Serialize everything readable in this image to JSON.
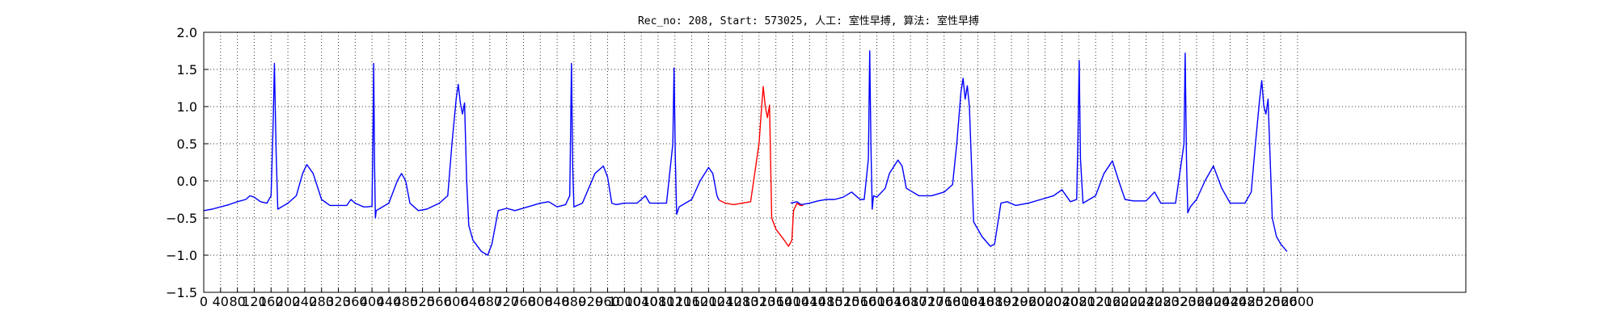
{
  "chart_data": {
    "type": "line",
    "title": "Rec_no: 208, Start: 573025, 人工: 室性早搏, 算法: 室性早搏",
    "xlabel": "",
    "ylabel": "",
    "xlim": [
      0,
      3000
    ],
    "ylim": [
      -1.5,
      2.0
    ],
    "yticks": [
      -1.5,
      -1.0,
      -0.5,
      0.0,
      0.5,
      1.0,
      1.5,
      2.0
    ],
    "ytick_labels": [
      "−1.5",
      "−1.0",
      "−0.5",
      "0.0",
      "0.5",
      "1.0",
      "1.5",
      "2.0"
    ],
    "xticks": [
      0,
      40,
      80,
      120,
      160,
      200,
      240,
      280,
      320,
      360,
      400,
      440,
      480,
      520,
      560,
      600,
      640,
      680,
      720,
      760,
      800,
      840,
      880,
      920,
      960,
      1000,
      1040,
      1080,
      1120,
      1160,
      1200,
      1240,
      1280,
      1320,
      1360,
      1400,
      1440,
      1480,
      1520,
      1560,
      1600,
      1640,
      1680,
      1720,
      1760,
      1800,
      1840,
      1880,
      1920,
      1960,
      2000,
      2040,
      2080,
      2120,
      2160,
      2200,
      2240,
      2280,
      2320,
      2360,
      2400,
      2440,
      2480,
      2520,
      2560,
      2600
    ],
    "grid": true,
    "series": [
      {
        "color": "#0000ff",
        "segments": [
          {
            "x": [
              0,
              20,
              40,
              60,
              80,
              100,
              110,
              120,
              135,
              150,
              160,
              165,
              168,
              172,
              176,
              200,
              220,
              235,
              245,
              260,
              280,
              300,
              320,
              340,
              350,
              360,
              380,
              390,
              400,
              402,
              404,
              406,
              408,
              410,
              416,
              440,
              460,
              470,
              480,
              490,
              510,
              530,
              560,
              580,
              590,
              600,
              605,
              610,
              615,
              620,
              625,
              630,
              640,
              660,
              675,
              685,
              700,
              720,
              740,
              770,
              800,
              820,
              840,
              860,
              870,
              872,
              874,
              877,
              880,
              900,
              930,
              950,
              960,
              970,
              980,
              1000,
              1030,
              1050,
              1060,
              1080,
              1100,
              1115,
              1118,
              1121,
              1124,
              1130,
              1160,
              1180,
              1200,
              1210,
              1220,
              1225
            ],
            "y": [
              -0.4,
              -0.38,
              -0.35,
              -0.32,
              -0.28,
              -0.25,
              -0.2,
              -0.22,
              -0.28,
              -0.3,
              -0.2,
              0.8,
              1.58,
              0.4,
              -0.38,
              -0.3,
              -0.2,
              0.1,
              0.22,
              0.1,
              -0.25,
              -0.33,
              -0.33,
              -0.33,
              -0.25,
              -0.3,
              -0.35,
              -0.35,
              -0.34,
              0.5,
              1.58,
              0.2,
              -0.5,
              -0.4,
              -0.38,
              -0.3,
              0.0,
              0.1,
              0.0,
              -0.3,
              -0.4,
              -0.38,
              -0.3,
              -0.2,
              0.5,
              1.1,
              1.3,
              1.05,
              0.9,
              1.05,
              0.0,
              -0.6,
              -0.8,
              -0.95,
              -1.0,
              -0.85,
              -0.4,
              -0.37,
              -0.4,
              -0.35,
              -0.3,
              -0.28,
              -0.35,
              -0.32,
              -0.2,
              0.6,
              1.58,
              0.2,
              -0.35,
              -0.3,
              0.1,
              0.2,
              0.05,
              -0.3,
              -0.32,
              -0.3,
              -0.3,
              -0.2,
              -0.3,
              -0.3,
              -0.3,
              0.5,
              1.52,
              0.3,
              -0.45,
              -0.35,
              -0.25,
              0.0,
              0.18,
              0.1,
              -0.2,
              -0.26
            ]
          },
          {
            "x": [
              1395,
              1410,
              1420,
              1440,
              1460,
              1480,
              1500,
              1520,
              1540,
              1560,
              1570,
              1580,
              1583,
              1586,
              1589,
              1592,
              1600,
              1620,
              1630,
              1650,
              1660,
              1670,
              1700,
              1730,
              1760,
              1780,
              1790,
              1800,
              1805,
              1810,
              1815,
              1820,
              1830,
              1850,
              1870,
              1880,
              1895,
              1910,
              1930,
              1960,
              1990,
              2020,
              2040,
              2060,
              2075,
              2078,
              2081,
              2084,
              2090,
              2120,
              2140,
              2160,
              2175,
              2190,
              2210,
              2240,
              2260,
              2275,
              2290,
              2310,
              2330,
              2333,
              2336,
              2339,
              2345,
              2360,
              2380,
              2400,
              2420,
              2440,
              2460,
              2475,
              2490,
              2500,
              2510,
              2515,
              2520,
              2525,
              2530,
              2540,
              2550,
              2560,
              2575
            ],
            "y": [
              -0.3,
              -0.28,
              -0.32,
              -0.3,
              -0.27,
              -0.25,
              -0.25,
              -0.22,
              -0.15,
              -0.25,
              -0.25,
              0.3,
              1.75,
              0.5,
              -0.38,
              -0.2,
              -0.22,
              -0.1,
              0.1,
              0.28,
              0.2,
              -0.1,
              -0.2,
              -0.2,
              -0.15,
              -0.05,
              0.5,
              1.2,
              1.38,
              1.1,
              1.28,
              1.0,
              -0.55,
              -0.75,
              -0.88,
              -0.85,
              -0.3,
              -0.28,
              -0.33,
              -0.3,
              -0.25,
              -0.2,
              -0.12,
              -0.28,
              -0.25,
              0.6,
              1.62,
              0.3,
              -0.3,
              -0.2,
              0.1,
              0.27,
              0.0,
              -0.25,
              -0.27,
              -0.27,
              -0.15,
              -0.3,
              -0.3,
              -0.3,
              0.5,
              1.72,
              0.3,
              -0.43,
              -0.35,
              -0.25,
              0.0,
              0.2,
              -0.1,
              -0.3,
              -0.3,
              -0.3,
              -0.15,
              0.5,
              1.1,
              1.35,
              1.0,
              0.9,
              1.1,
              -0.5,
              -0.75,
              -0.85,
              -0.95
            ]
          }
        ]
      },
      {
        "color": "#ff0000",
        "segments": [
          {
            "x": [
              1225,
              1240,
              1260,
              1280,
              1300,
              1320,
              1325,
              1330,
              1335,
              1340,
              1345,
              1350,
              1360,
              1380,
              1390,
              1398,
              1402,
              1410,
              1418,
              1425
            ],
            "y": [
              -0.26,
              -0.3,
              -0.32,
              -0.3,
              -0.28,
              0.5,
              0.9,
              1.27,
              1.0,
              0.85,
              1.02,
              -0.5,
              -0.65,
              -0.8,
              -0.88,
              -0.8,
              -0.4,
              -0.3,
              -0.33,
              -0.33
            ]
          }
        ]
      }
    ]
  }
}
